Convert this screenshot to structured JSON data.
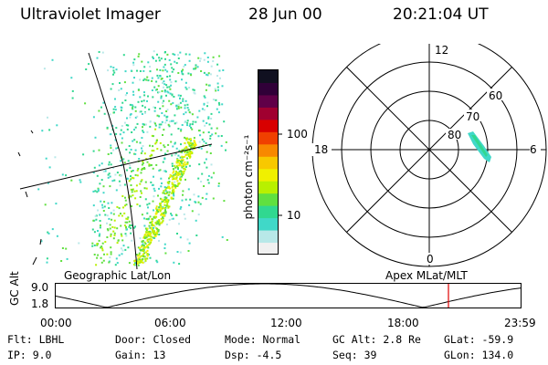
{
  "header": {
    "instrument": "Ultraviolet Imager",
    "date": "28 Jun 00",
    "time": "20:21:04 UT"
  },
  "colorbar": {
    "unit_label": "photon cm⁻²s⁻¹",
    "tick_100": "100",
    "tick_10": "10",
    "colors": [
      "#f0f0f0",
      "#b8e8e8",
      "#40d8c8",
      "#30d890",
      "#60e040",
      "#b8f000",
      "#f0f000",
      "#f8c800",
      "#f88800",
      "#f04000",
      "#d80000",
      "#a00030",
      "#600048",
      "#300038",
      "#101020"
    ]
  },
  "polar": {
    "mlt_top": "12",
    "mlt_left": "18",
    "mlt_right": "6",
    "mlt_bottom": "0",
    "lat_60": "60",
    "lat_70": "70",
    "lat_80": "80"
  },
  "orbit_panel": {
    "left_title": "Geographic Lat/Lon",
    "right_title": "Apex MLat/MLT",
    "y_axis_label": "GC Alt",
    "y_tick_top": "9.0",
    "y_tick_bottom": "1.8",
    "x_ticks": [
      "00:00",
      "06:00",
      "12:00",
      "18:00",
      "23:59"
    ],
    "marker_color": "#e00000"
  },
  "info": {
    "flt": "Flt: LBHL",
    "ip": "IP:  9.0",
    "door": "Door: Closed",
    "gain": "Gain: 13",
    "mode": "Mode: Normal",
    "dsp": "Dsp:   -4.5",
    "gc_alt": "GC Alt: 2.8 Re",
    "seq": "Seq: 39",
    "glat": "GLat: -59.9",
    "glon": "GLon: 134.0"
  }
}
